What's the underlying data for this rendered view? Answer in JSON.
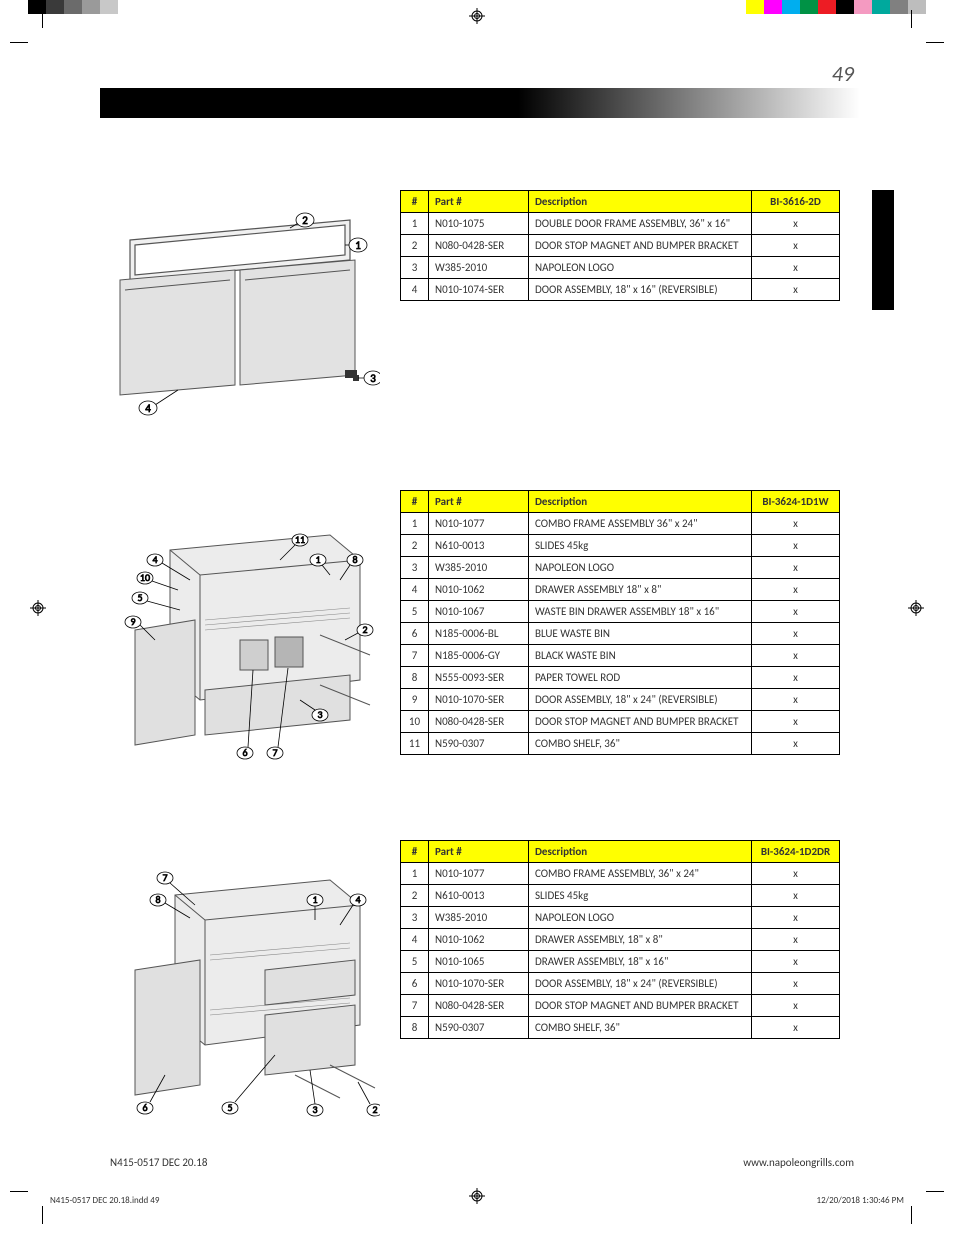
{
  "page_number": "49",
  "footer_left": "N415-0517 DEC 20.18",
  "footer_right": "www.napoleongrills.com",
  "slug_left": "N415-0517 DEC 20.18.indd   49",
  "slug_right": "12/20/2018   1:30:46 PM",
  "swatches_left": [
    "#000000",
    "#3a3a3a",
    "#6b6b6b",
    "#9a9a9a",
    "#c8c8c8"
  ],
  "swatches_right": [
    "#ffff00",
    "#ff00ff",
    "#00aeef",
    "#009245",
    "#ed1c24",
    "#000000",
    "#f49ac1",
    "#00a99d",
    "#808080",
    "#bdbdbd"
  ],
  "table_headers": {
    "num": "#",
    "part": "Part #",
    "desc": "Description"
  },
  "tables": {
    "t1": {
      "model": "BI-3616-2D",
      "rows": [
        {
          "n": "1",
          "p": "N010-1075",
          "d": "DOUBLE DOOR FRAME ASSEMBLY, 36\" x 16\"",
          "m": "x"
        },
        {
          "n": "2",
          "p": "N080-0428-SER",
          "d": "DOOR STOP MAGNET AND BUMPER BRACKET",
          "m": "x"
        },
        {
          "n": "3",
          "p": "W385-2010",
          "d": "NAPOLEON LOGO",
          "m": "x"
        },
        {
          "n": "4",
          "p": "N010-1074-SER",
          "d": "DOOR ASSEMBLY, 18\" x 16\" (REVERSIBLE)",
          "m": "x"
        }
      ]
    },
    "t2": {
      "model": "BI-3624-1D1W",
      "rows": [
        {
          "n": "1",
          "p": "N010-1077",
          "d": "COMBO FRAME ASSEMBLY 36\" x 24\"",
          "m": "x"
        },
        {
          "n": "2",
          "p": "N610-0013",
          "d": "SLIDES 45kg",
          "m": "x"
        },
        {
          "n": "3",
          "p": "W385-2010",
          "d": "NAPOLEON LOGO",
          "m": "x"
        },
        {
          "n": "4",
          "p": "N010-1062",
          "d": "DRAWER ASSEMBLY 18\" x 8\"",
          "m": "x"
        },
        {
          "n": "5",
          "p": "N010-1067",
          "d": "WASTE BIN DRAWER ASSEMBLY 18\" x 16\"",
          "m": "x"
        },
        {
          "n": "6",
          "p": "N185-0006-BL",
          "d": "BLUE WASTE BIN",
          "m": "x"
        },
        {
          "n": "7",
          "p": "N185-0006-GY",
          "d": "BLACK WASTE BIN",
          "m": "x"
        },
        {
          "n": "8",
          "p": "N555-0093-SER",
          "d": "PAPER TOWEL ROD",
          "m": "x"
        },
        {
          "n": "9",
          "p": "N010-1070-SER",
          "d": "DOOR ASSEMBLY, 18\" x 24\" (REVERSIBLE)",
          "m": "x"
        },
        {
          "n": "10",
          "p": "N080-0428-SER",
          "d": "DOOR STOP MAGNET AND BUMPER BRACKET",
          "m": "x"
        },
        {
          "n": "11",
          "p": "N590-0307",
          "d": "COMBO SHELF, 36\"",
          "m": "x"
        }
      ]
    },
    "t3": {
      "model": "BI-3624-1D2DR",
      "rows": [
        {
          "n": "1",
          "p": "N010-1077",
          "d": "COMBO FRAME ASSEMBLY, 36\" x 24\"",
          "m": "x"
        },
        {
          "n": "2",
          "p": "N610-0013",
          "d": "SLIDES 45kg",
          "m": "x"
        },
        {
          "n": "3",
          "p": "W385-2010",
          "d": "NAPOLEON LOGO",
          "m": "x"
        },
        {
          "n": "4",
          "p": "N010-1062",
          "d": "DRAWER ASSEMBLY, 18\" x 8\"",
          "m": "x"
        },
        {
          "n": "5",
          "p": "N010-1065",
          "d": "DRAWER ASSEMBLY, 18\" x 16\"",
          "m": "x"
        },
        {
          "n": "6",
          "p": "N010-1070-SER",
          "d": "DOOR ASSEMBLY, 18\" x 24\" (REVERSIBLE)",
          "m": "x"
        },
        {
          "n": "7",
          "p": "N080-0428-SER",
          "d": "DOOR STOP MAGNET AND BUMPER BRACKET",
          "m": "x"
        },
        {
          "n": "8",
          "p": "N590-0307",
          "d": "COMBO SHELF, 36\"",
          "m": "x"
        }
      ]
    }
  },
  "diagram_callouts": {
    "d1": [
      "1",
      "2",
      "3",
      "4"
    ],
    "d2": [
      "1",
      "2",
      "3",
      "4",
      "5",
      "6",
      "7",
      "8",
      "9",
      "10",
      "11"
    ],
    "d3": [
      "1",
      "2",
      "3",
      "4",
      "5",
      "6",
      "7",
      "8"
    ]
  }
}
